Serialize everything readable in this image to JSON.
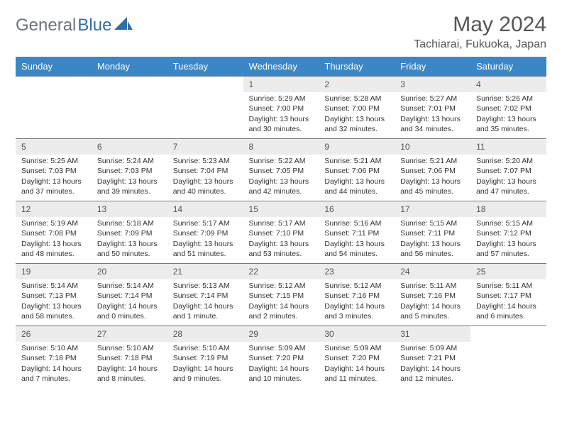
{
  "brand": {
    "part1": "General",
    "part2": "Blue"
  },
  "title": "May 2024",
  "location": "Tachiarai, Fukuoka, Japan",
  "colors": {
    "header_bg": "#3a87c7",
    "header_text": "#ffffff",
    "daynum_bg": "#ececec",
    "row_border": "#7a7a7a",
    "text": "#333333",
    "title_text": "#555555"
  },
  "weekday_headers": [
    "Sunday",
    "Monday",
    "Tuesday",
    "Wednesday",
    "Thursday",
    "Friday",
    "Saturday"
  ],
  "weeks": [
    [
      null,
      null,
      null,
      {
        "n": "1",
        "sr": "5:29 AM",
        "ss": "7:00 PM",
        "dl": "13 hours and 30 minutes."
      },
      {
        "n": "2",
        "sr": "5:28 AM",
        "ss": "7:00 PM",
        "dl": "13 hours and 32 minutes."
      },
      {
        "n": "3",
        "sr": "5:27 AM",
        "ss": "7:01 PM",
        "dl": "13 hours and 34 minutes."
      },
      {
        "n": "4",
        "sr": "5:26 AM",
        "ss": "7:02 PM",
        "dl": "13 hours and 35 minutes."
      }
    ],
    [
      {
        "n": "5",
        "sr": "5:25 AM",
        "ss": "7:03 PM",
        "dl": "13 hours and 37 minutes."
      },
      {
        "n": "6",
        "sr": "5:24 AM",
        "ss": "7:03 PM",
        "dl": "13 hours and 39 minutes."
      },
      {
        "n": "7",
        "sr": "5:23 AM",
        "ss": "7:04 PM",
        "dl": "13 hours and 40 minutes."
      },
      {
        "n": "8",
        "sr": "5:22 AM",
        "ss": "7:05 PM",
        "dl": "13 hours and 42 minutes."
      },
      {
        "n": "9",
        "sr": "5:21 AM",
        "ss": "7:06 PM",
        "dl": "13 hours and 44 minutes."
      },
      {
        "n": "10",
        "sr": "5:21 AM",
        "ss": "7:06 PM",
        "dl": "13 hours and 45 minutes."
      },
      {
        "n": "11",
        "sr": "5:20 AM",
        "ss": "7:07 PM",
        "dl": "13 hours and 47 minutes."
      }
    ],
    [
      {
        "n": "12",
        "sr": "5:19 AM",
        "ss": "7:08 PM",
        "dl": "13 hours and 48 minutes."
      },
      {
        "n": "13",
        "sr": "5:18 AM",
        "ss": "7:09 PM",
        "dl": "13 hours and 50 minutes."
      },
      {
        "n": "14",
        "sr": "5:17 AM",
        "ss": "7:09 PM",
        "dl": "13 hours and 51 minutes."
      },
      {
        "n": "15",
        "sr": "5:17 AM",
        "ss": "7:10 PM",
        "dl": "13 hours and 53 minutes."
      },
      {
        "n": "16",
        "sr": "5:16 AM",
        "ss": "7:11 PM",
        "dl": "13 hours and 54 minutes."
      },
      {
        "n": "17",
        "sr": "5:15 AM",
        "ss": "7:11 PM",
        "dl": "13 hours and 56 minutes."
      },
      {
        "n": "18",
        "sr": "5:15 AM",
        "ss": "7:12 PM",
        "dl": "13 hours and 57 minutes."
      }
    ],
    [
      {
        "n": "19",
        "sr": "5:14 AM",
        "ss": "7:13 PM",
        "dl": "13 hours and 58 minutes."
      },
      {
        "n": "20",
        "sr": "5:14 AM",
        "ss": "7:14 PM",
        "dl": "14 hours and 0 minutes."
      },
      {
        "n": "21",
        "sr": "5:13 AM",
        "ss": "7:14 PM",
        "dl": "14 hours and 1 minute."
      },
      {
        "n": "22",
        "sr": "5:12 AM",
        "ss": "7:15 PM",
        "dl": "14 hours and 2 minutes."
      },
      {
        "n": "23",
        "sr": "5:12 AM",
        "ss": "7:16 PM",
        "dl": "14 hours and 3 minutes."
      },
      {
        "n": "24",
        "sr": "5:11 AM",
        "ss": "7:16 PM",
        "dl": "14 hours and 5 minutes."
      },
      {
        "n": "25",
        "sr": "5:11 AM",
        "ss": "7:17 PM",
        "dl": "14 hours and 6 minutes."
      }
    ],
    [
      {
        "n": "26",
        "sr": "5:10 AM",
        "ss": "7:18 PM",
        "dl": "14 hours and 7 minutes."
      },
      {
        "n": "27",
        "sr": "5:10 AM",
        "ss": "7:18 PM",
        "dl": "14 hours and 8 minutes."
      },
      {
        "n": "28",
        "sr": "5:10 AM",
        "ss": "7:19 PM",
        "dl": "14 hours and 9 minutes."
      },
      {
        "n": "29",
        "sr": "5:09 AM",
        "ss": "7:20 PM",
        "dl": "14 hours and 10 minutes."
      },
      {
        "n": "30",
        "sr": "5:09 AM",
        "ss": "7:20 PM",
        "dl": "14 hours and 11 minutes."
      },
      {
        "n": "31",
        "sr": "5:09 AM",
        "ss": "7:21 PM",
        "dl": "14 hours and 12 minutes."
      },
      null
    ]
  ],
  "labels": {
    "sunrise": "Sunrise:",
    "sunset": "Sunset:",
    "daylight": "Daylight:"
  }
}
